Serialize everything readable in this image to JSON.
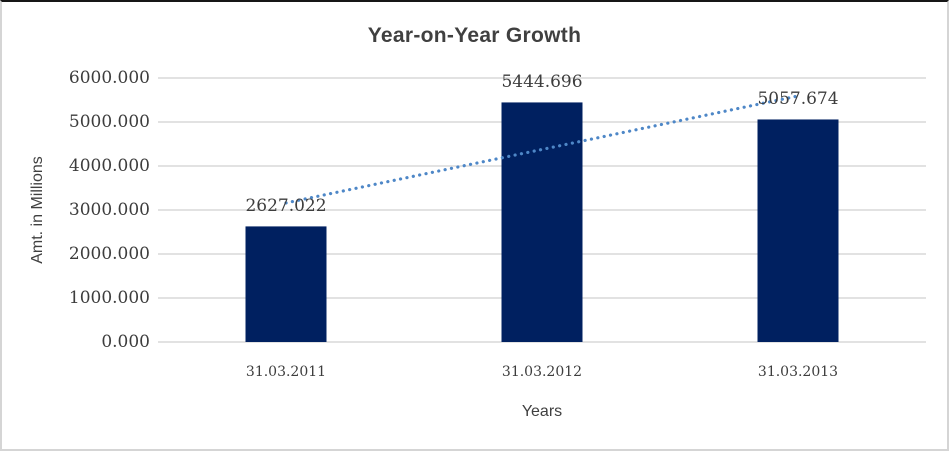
{
  "chart_data": {
    "type": "bar",
    "title": "Year-on-Year Growth",
    "categories": [
      "31.03.2011",
      "31.03.2012",
      "31.03.2013"
    ],
    "values": [
      2627.022,
      5444.696,
      5057.674
    ],
    "data_labels": [
      "2627.022",
      "5444.696",
      "5057.674"
    ],
    "xlabel": "Years",
    "ylabel": "Amt. in Millions",
    "ylim": [
      0,
      6000
    ],
    "ytick_labels": [
      "6000.000",
      "5000.000",
      "4000.000",
      "3000.000",
      "2000.000",
      "1000.000",
      "0.000"
    ],
    "grid": true,
    "legend": "none",
    "colors": {
      "bar": "#002060",
      "trendline": "#4E87C7",
      "gridline": "#D9D9D9",
      "text": "#404040"
    },
    "trendline": {
      "type": "linear",
      "style": "dotted",
      "values_at_categories": [
        3161.138,
        4376.464,
        5591.79
      ]
    }
  }
}
